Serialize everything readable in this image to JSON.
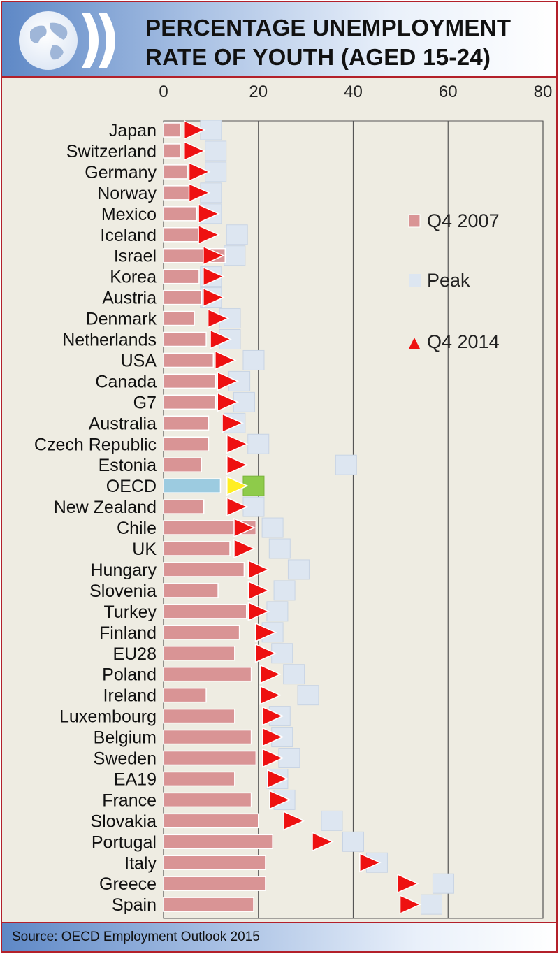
{
  "header": {
    "title_line1": "PERCENTAGE  UNEMPLOYMENT",
    "title_line2": "RATE OF YOUTH (AGED 15-24)",
    "logo": "oecd-globe-logo-icon"
  },
  "footer": {
    "source": "Source: OECD Employment Outlook 2015"
  },
  "colors": {
    "q4_2007_bar": "#d99495",
    "q4_2007_highlight": "#9ccbe0",
    "peak": "#dde6f1",
    "peak_highlight": "#8ecb4a",
    "q4_2014": "#ee1111",
    "q4_2014_highlight": "#ffee22",
    "frame": "#b3202a",
    "plot_background": "#eeece2"
  },
  "chart_data": {
    "type": "bar",
    "orientation": "horizontal",
    "x_axis_position": "top",
    "xlim": [
      0,
      80
    ],
    "x_ticks": [
      "0",
      "20",
      "40",
      "60",
      "80"
    ],
    "grid": true,
    "legend_position": "right",
    "highlight_category": "OECD",
    "categories": [
      "Japan",
      "Switzerland",
      "Germany",
      "Norway",
      "Mexico",
      "Iceland",
      "Israel",
      "Korea",
      "Austria",
      "Denmark",
      "Netherlands",
      "USA",
      "Canada",
      "G7",
      "Australia",
      "Czech Republic",
      "Estonia",
      "OECD",
      "New Zealand",
      "Chile",
      "UK",
      "Hungary",
      "Slovenia",
      "Turkey",
      "Finland",
      "EU28",
      "Poland",
      "Ireland",
      "Luxembourg",
      "Belgium",
      "Sweden",
      "EA19",
      "France",
      "Slovakia",
      "Portugal",
      "Italy",
      "Greece",
      "Spain"
    ],
    "series": [
      {
        "name": "Q4 2007",
        "mark": "bar",
        "values": [
          3.5,
          3.5,
          5,
          5.5,
          7,
          7.5,
          13,
          7.5,
          8,
          6.5,
          9,
          10.5,
          11,
          11,
          9.5,
          9.5,
          8,
          12,
          8.5,
          19.5,
          14,
          17,
          11.5,
          17.5,
          16,
          15,
          18.5,
          9,
          15,
          18.5,
          19.5,
          15,
          18.5,
          20,
          23,
          21.5,
          21.5,
          19
        ]
      },
      {
        "name": "Peak",
        "mark": "square",
        "values": [
          10,
          11,
          11,
          10,
          10,
          15.5,
          15,
          10,
          10,
          14,
          14,
          19,
          16,
          17,
          15,
          20,
          38.5,
          19,
          19,
          23,
          24.5,
          28.5,
          25.5,
          24,
          23,
          25,
          27.5,
          30.5,
          24.5,
          25,
          26.5,
          24,
          25.5,
          35.5,
          40,
          45,
          59,
          56.5
        ]
      },
      {
        "name": "Q4 2014",
        "mark": "triangle",
        "values": [
          6,
          6,
          7,
          7,
          9,
          9,
          10,
          10,
          10,
          11,
          11.5,
          12.5,
          13,
          13,
          14,
          15,
          15,
          15,
          15,
          16.5,
          16.5,
          19.5,
          19.5,
          19.5,
          21,
          21,
          22,
          22,
          22.5,
          22.5,
          22.5,
          23.5,
          24,
          27,
          33,
          43,
          51,
          51.5
        ]
      }
    ]
  }
}
